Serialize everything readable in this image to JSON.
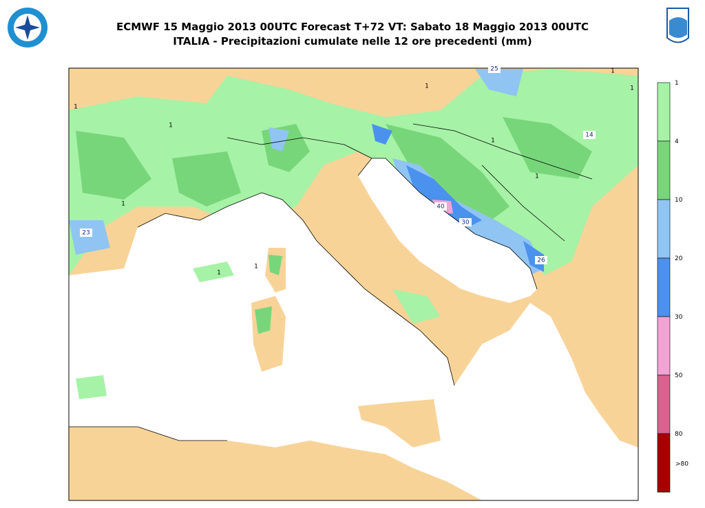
{
  "header": {
    "title": "ECMWF 15 Maggio 2013 00UTC Forecast T+72 VT: Sabato 18 Maggio 2013 00UTC",
    "subtitle": "ITALIA - Precipitazioni cumulate nelle 12 ore precedenti (mm)"
  },
  "legend": {
    "labels": [
      "1",
      "4",
      "10",
      "20",
      "30",
      "50",
      "80",
      ">80"
    ],
    "colors": [
      "#a6f2a6",
      "#78d67a",
      "#90c4f2",
      "#4a92ee",
      "#f2a2d4",
      "#d6648e",
      "#a80000"
    ]
  },
  "map": {
    "labels": [
      "23",
      "40",
      "30",
      "26",
      "14",
      "25",
      "1",
      "1",
      "1",
      "1",
      "1",
      "1",
      "1",
      "1",
      "1",
      "1"
    ]
  }
}
